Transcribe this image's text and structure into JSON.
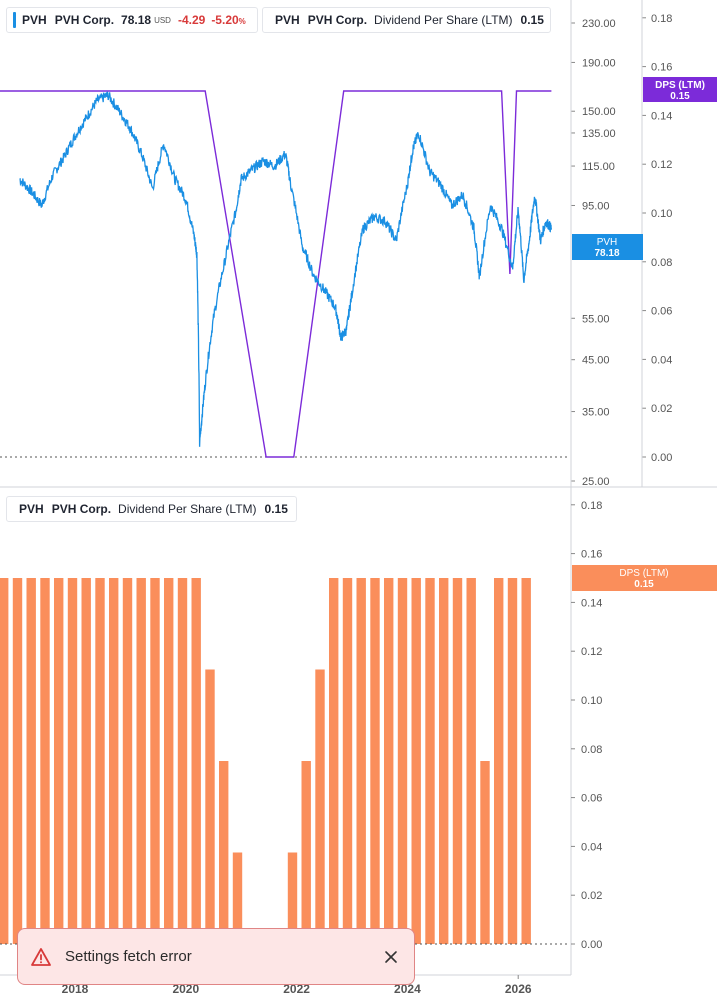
{
  "legends": {
    "price": {
      "symbol": "PVH",
      "name": "PVH Corp.",
      "value": "78.18",
      "currency": "USD",
      "change": "-4.29",
      "change_pct": "-5.20",
      "pct_sign": "%",
      "color": "#1a8fe3"
    },
    "dps_top": {
      "symbol": "PVH",
      "name": "PVH Corp.",
      "metric": "Dividend Per Share (LTM)",
      "value": "0.15",
      "color": "#7c2bd9"
    },
    "dps_bottom": {
      "symbol": "PVH",
      "name": "PVH Corp.",
      "metric": "Dividend Per Share (LTM)",
      "value": "0.15",
      "color": "#fa8e5b"
    }
  },
  "badges": {
    "price": {
      "label": "PVH",
      "value": "78.18",
      "color": "#1a8fe3"
    },
    "dps_top": {
      "label": "DPS (LTM)",
      "value": "0.15",
      "color": "#7c2bd9"
    },
    "dps_bottom": {
      "label": "DPS (LTM)",
      "value": "0.15",
      "color": "#fa8e5b"
    }
  },
  "toast": {
    "message": "Settings fetch error"
  },
  "chart_data": [
    {
      "type": "line",
      "scale": "log",
      "series": [
        {
          "name": "PVH",
          "x": [
            2017.0,
            2017.2,
            2017.4,
            2017.6,
            2017.8,
            2018.0,
            2018.2,
            2018.4,
            2018.6,
            2018.8,
            2019.0,
            2019.2,
            2019.4,
            2019.6,
            2019.8,
            2020.0,
            2020.15,
            2020.2,
            2020.25,
            2020.35,
            2020.5,
            2020.7,
            2020.9,
            2021.0,
            2021.2,
            2021.4,
            2021.6,
            2021.8,
            2021.9,
            2022.1,
            2022.3,
            2022.5,
            2022.7,
            2022.8,
            2022.9,
            2023.0,
            2023.2,
            2023.4,
            2023.6,
            2023.8,
            2024.0,
            2024.1,
            2024.2,
            2024.4,
            2024.6,
            2024.8,
            2025.0,
            2025.2,
            2025.3,
            2025.5,
            2025.7,
            2025.9,
            2026.0,
            2026.1,
            2026.2,
            2026.3,
            2026.4,
            2026.5,
            2026.6
          ],
          "values": [
            108,
            102,
            95,
            110,
            120,
            133,
            145,
            158,
            162,
            150,
            138,
            122,
            103,
            128,
            108,
            98,
            82,
            75,
            30,
            40,
            55,
            72,
            92,
            108,
            113,
            118,
            115,
            122,
            104,
            78,
            68,
            63,
            58,
            50,
            52,
            62,
            85,
            90,
            88,
            80,
            105,
            125,
            135,
            112,
            105,
            95,
            100,
            85,
            67,
            95,
            85,
            70,
            93,
            66,
            80,
            100,
            80,
            88,
            85
          ]
        },
        {
          "name": "Dividend Per Share (LTM)",
          "x": [
            2016.3,
            2020.35,
            2021.45,
            2021.95,
            2022.85,
            2025.7,
            2025.85,
            2025.97,
            2026.6
          ],
          "values": [
            0.15,
            0.15,
            0,
            0,
            0.15,
            0.15,
            0.075,
            0.15,
            0.15
          ]
        }
      ],
      "y_ticks": [
        "230.00",
        "190.00",
        "150.00",
        "135.00",
        "115.00",
        "95.00",
        "55.00",
        "45.00",
        "35.00",
        "25.00"
      ],
      "y2_ticks": [
        "0.18",
        "0.16",
        "0.14",
        "0.12",
        "0.10",
        "0.08",
        "0.06",
        "0.04",
        "0.02",
        "0.00"
      ]
    },
    {
      "type": "bar",
      "series": [
        {
          "name": "Dividend Per Share (LTM)",
          "values": [
            0.15,
            0.15,
            0.15,
            0.15,
            0.15,
            0.15,
            0.15,
            0.15,
            0.15,
            0.15,
            0.15,
            0.15,
            0.15,
            0.15,
            0.15,
            0.1125,
            0.075,
            0.0375,
            0,
            0,
            0,
            0.0375,
            0.075,
            0.1125,
            0.15,
            0.15,
            0.15,
            0.15,
            0.15,
            0.15,
            0.15,
            0.15,
            0.15,
            0.15,
            0.15,
            0.075,
            0.15,
            0.15,
            0.15
          ]
        }
      ],
      "y_ticks": [
        "0.18",
        "0.16",
        "0.14",
        "0.12",
        "0.10",
        "0.08",
        "0.06",
        "0.04",
        "0.02",
        "0.00"
      ],
      "x_ticks": [
        "2018",
        "2020",
        "2022",
        "2024",
        "2026"
      ],
      "ylim": [
        0,
        0.18
      ]
    }
  ]
}
